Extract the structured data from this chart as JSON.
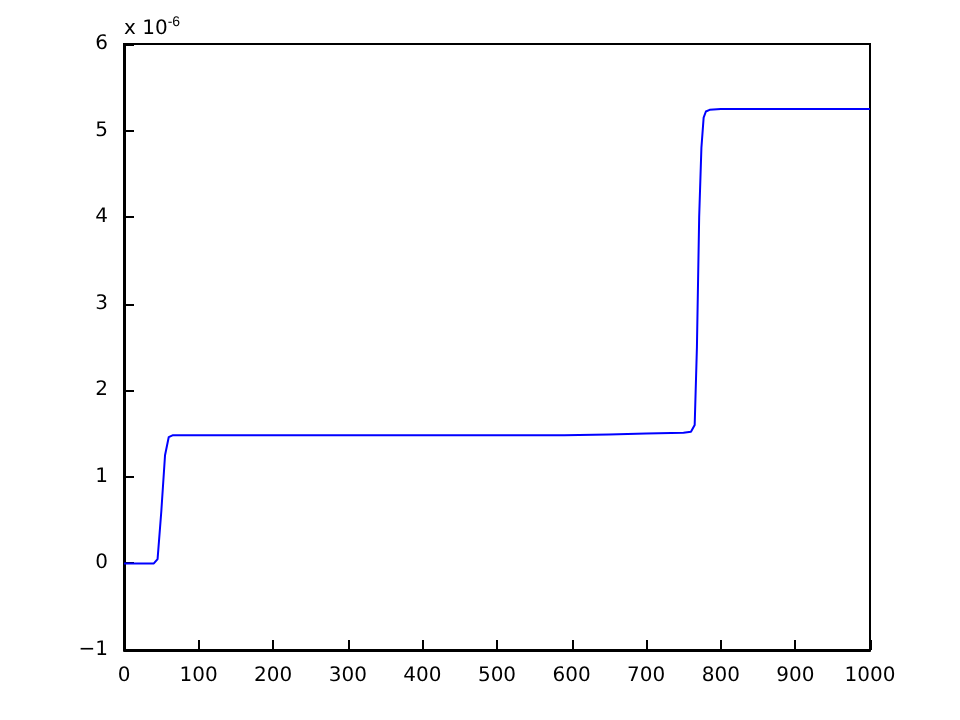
{
  "chart_data": {
    "type": "line",
    "x": [
      0,
      40,
      45,
      50,
      55,
      60,
      65,
      80,
      200,
      400,
      590,
      650,
      700,
      750,
      760,
      765,
      768,
      771,
      774,
      777,
      780,
      785,
      800,
      900,
      1000
    ],
    "series": [
      {
        "color": "#0000ff",
        "values": [
          0,
          0,
          0.05,
          0.6,
          1.25,
          1.46,
          1.48,
          1.48,
          1.48,
          1.48,
          1.48,
          1.49,
          1.5,
          1.51,
          1.52,
          1.6,
          2.5,
          4.0,
          4.8,
          5.15,
          5.22,
          5.24,
          5.25,
          5.25,
          5.25
        ]
      }
    ],
    "xlim": [
      0,
      1000
    ],
    "xticks": [
      0,
      100,
      200,
      300,
      400,
      500,
      600,
      700,
      800,
      900,
      1000
    ],
    "ylim": [
      -1,
      6
    ],
    "yticks": [
      -1,
      0,
      1,
      2,
      3,
      4,
      5,
      6
    ],
    "annotations": [
      "x 10$^{-6}$"
    ],
    "grid": false,
    "marker": "none",
    "line_style": "solid"
  }
}
